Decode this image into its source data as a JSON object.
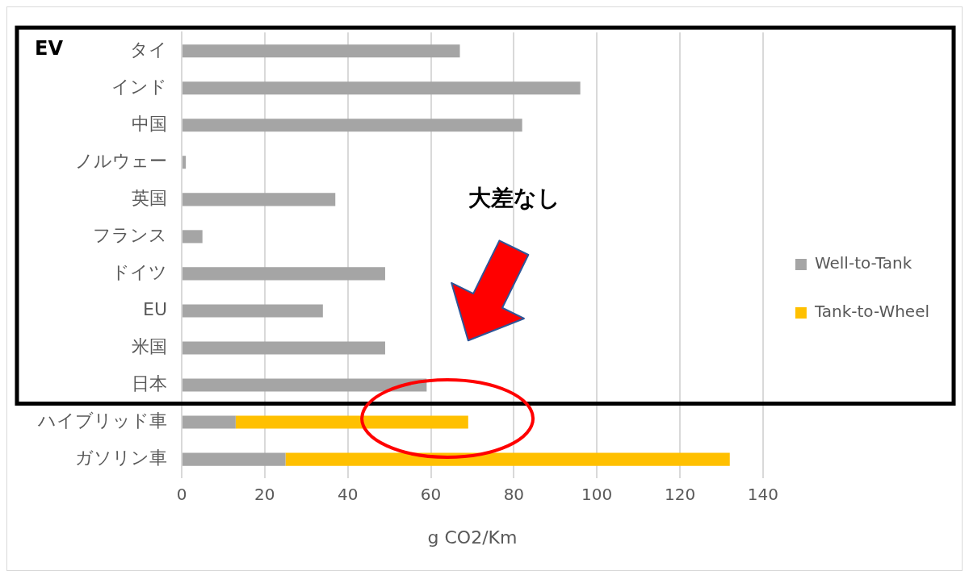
{
  "chart_data": {
    "type": "bar",
    "orientation": "horizontal",
    "stacked": true,
    "xlabel": "g CO2/Km",
    "categories": [
      "タイ",
      "インド",
      "中国",
      "ノルウェー",
      "英国",
      "フランス",
      "ドイツ",
      "EU",
      "米国",
      "日本",
      "ハイブリッド車",
      "ガソリン車"
    ],
    "series": [
      {
        "name": "Well-to-Tank",
        "color": "#a5a5a5",
        "values": [
          67,
          96,
          82,
          1,
          37,
          5,
          49,
          34,
          49,
          59,
          13,
          25
        ]
      },
      {
        "name": "Tank-to-Wheel",
        "color": "#ffc000",
        "values": [
          null,
          null,
          null,
          null,
          null,
          null,
          null,
          null,
          null,
          null,
          56,
          107
        ]
      }
    ],
    "xlim": [
      0,
      140
    ],
    "xticks": [
      0,
      20,
      40,
      60,
      80,
      100,
      120,
      140
    ],
    "grid": "x",
    "legend": "right",
    "annotations": [
      "EV",
      "大差なし"
    ]
  }
}
